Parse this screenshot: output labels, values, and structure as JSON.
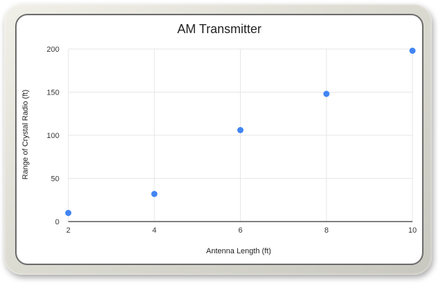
{
  "chart_data": {
    "type": "scatter",
    "title": "AM Transmitter",
    "xlabel": "Antenna Length (ft)",
    "ylabel": "Range of Crystal Radio (ft)",
    "x": [
      2,
      4,
      6,
      8,
      10
    ],
    "y": [
      10,
      32,
      106,
      148,
      198
    ],
    "xlim": [
      2,
      10
    ],
    "ylim": [
      0,
      200
    ],
    "xticks": [
      "2",
      "4",
      "6",
      "8",
      "10"
    ],
    "yticks": [
      "0",
      "50",
      "100",
      "150",
      "200"
    ],
    "grid": true,
    "legend": "none",
    "point_color": "#4285f4",
    "grid_color": "#e6e6e6",
    "axis_color": "#333333"
  }
}
